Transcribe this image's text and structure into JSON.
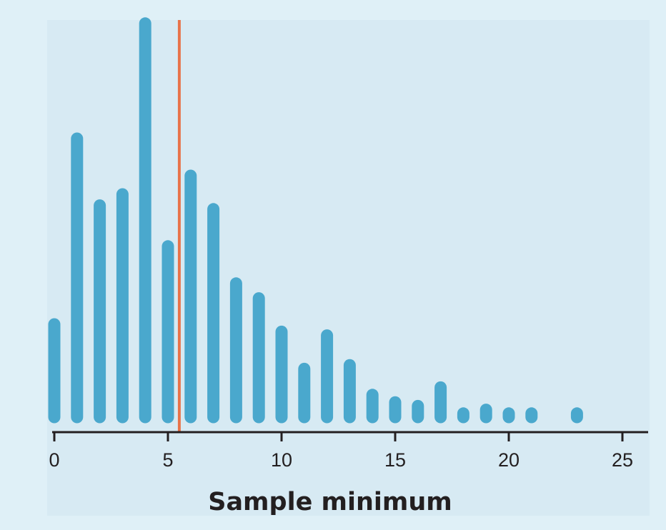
{
  "colors": {
    "page_background": "#dff0f7",
    "plot_background": "#d7eaf3",
    "dot_color": "#4aa8cd",
    "reference_line": "#e8734a",
    "axis_color": "#231f20"
  },
  "chart_data": {
    "type": "bar",
    "style": "stacked-dot histogram",
    "xlabel": "Sample minimum",
    "ylabel": "",
    "title": "",
    "xlim": [
      0,
      26
    ],
    "x_ticks": [
      0,
      5,
      10,
      15,
      20,
      25
    ],
    "x_tick_labels": [
      "0",
      "5",
      "10",
      "15",
      "20",
      "25"
    ],
    "grid": false,
    "y_axis_shown": false,
    "x": [
      0,
      1,
      2,
      3,
      4,
      5,
      6,
      7,
      8,
      9,
      10,
      11,
      12,
      13,
      14,
      15,
      16,
      17,
      18,
      19,
      20,
      21,
      23
    ],
    "counts": [
      26,
      76,
      58,
      61,
      107,
      47,
      66,
      57,
      37,
      33,
      24,
      14,
      23,
      15,
      7,
      5,
      4,
      9,
      2,
      3,
      2,
      2,
      2
    ],
    "reference_line_x": 5.5
  }
}
